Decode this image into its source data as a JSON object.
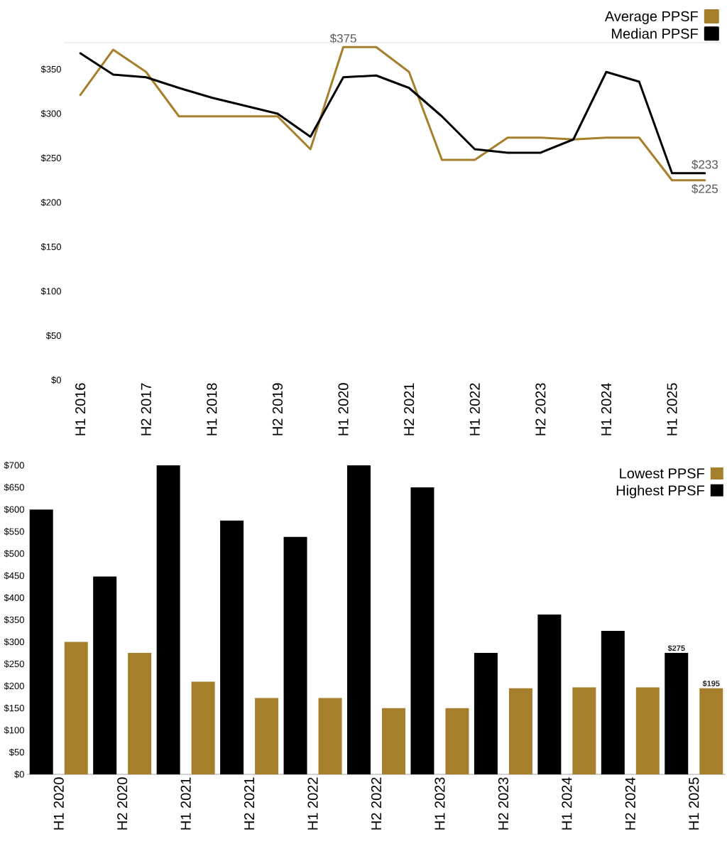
{
  "chart_data": [
    {
      "type": "line",
      "categories": [
        "H1 2016",
        null,
        "H2 2017",
        null,
        "H1 2018",
        null,
        "H2 2019",
        null,
        "H1 2020",
        null,
        "H2 2021",
        null,
        "H1 2022",
        null,
        "H2 2023",
        null,
        "H1 2024",
        null,
        "H1 2025",
        null
      ],
      "series": [
        {
          "name": "Average PPSF",
          "color": "#a67f2d",
          "values": [
            321,
            372,
            347,
            297,
            297,
            297,
            297,
            260,
            375,
            375,
            347,
            248,
            248,
            273,
            273,
            271,
            273,
            273,
            225,
            225
          ],
          "value_labels": [
            null,
            null,
            null,
            null,
            null,
            null,
            null,
            null,
            "$375",
            null,
            null,
            null,
            null,
            null,
            null,
            null,
            null,
            null,
            null,
            "$225"
          ]
        },
        {
          "name": "Median PPSF",
          "color": "#000000",
          "values": [
            368,
            344,
            341,
            329,
            318,
            309,
            300,
            274,
            341,
            343,
            329,
            297,
            260,
            256,
            256,
            271,
            347,
            336,
            233,
            233
          ],
          "value_labels": [
            null,
            null,
            null,
            null,
            null,
            null,
            null,
            null,
            null,
            null,
            null,
            null,
            null,
            null,
            null,
            null,
            null,
            null,
            null,
            "$233"
          ]
        }
      ],
      "ylim": [
        0,
        380
      ],
      "yticks": [
        {
          "value": 0,
          "label": "$0"
        },
        {
          "value": 50,
          "label": "$50"
        },
        {
          "value": 100,
          "label": "$100"
        },
        {
          "value": 150,
          "label": "$150"
        },
        {
          "value": 200,
          "label": "$200"
        },
        {
          "value": 250,
          "label": "$250"
        },
        {
          "value": 300,
          "label": "$300"
        },
        {
          "value": 350,
          "label": "$350"
        }
      ],
      "legend": "top right"
    },
    {
      "type": "bar",
      "categories": [
        "H1 2020",
        "H2 2020",
        "H1 2021",
        "H2 2021",
        "H1 2022",
        "H2 2022",
        "H1 2023",
        "H2 2023",
        "H1 2024",
        "H2 2024",
        "H1 2025"
      ],
      "series": [
        {
          "name": "Highest PPSF",
          "color": "#000000",
          "values": [
            600,
            448,
            700,
            575,
            538,
            700,
            650,
            275,
            362,
            325,
            275
          ],
          "value_labels": [
            null,
            null,
            null,
            null,
            null,
            null,
            null,
            null,
            null,
            null,
            "$275"
          ]
        },
        {
          "name": "Lowest PPSF",
          "color": "#a67f2d",
          "values": [
            300,
            275,
            210,
            173,
            173,
            150,
            150,
            195,
            197,
            197,
            195
          ],
          "value_labels": [
            null,
            null,
            null,
            null,
            null,
            null,
            null,
            null,
            null,
            null,
            "$195"
          ]
        }
      ],
      "ylim": [
        0,
        700
      ],
      "yticks": [
        {
          "value": 0,
          "label": "$0"
        },
        {
          "value": 50,
          "label": "$50"
        },
        {
          "value": 100,
          "label": "$100"
        },
        {
          "value": 150,
          "label": "$150"
        },
        {
          "value": 200,
          "label": "$200"
        },
        {
          "value": 250,
          "label": "$250"
        },
        {
          "value": 300,
          "label": "$300"
        },
        {
          "value": 350,
          "label": "$350"
        },
        {
          "value": 400,
          "label": "$400"
        },
        {
          "value": 450,
          "label": "$450"
        },
        {
          "value": 500,
          "label": "$500"
        },
        {
          "value": 550,
          "label": "$550"
        },
        {
          "value": 600,
          "label": "$600"
        },
        {
          "value": 650,
          "label": "$650"
        },
        {
          "value": 700,
          "label": "$700"
        }
      ],
      "legend": "top right"
    }
  ]
}
